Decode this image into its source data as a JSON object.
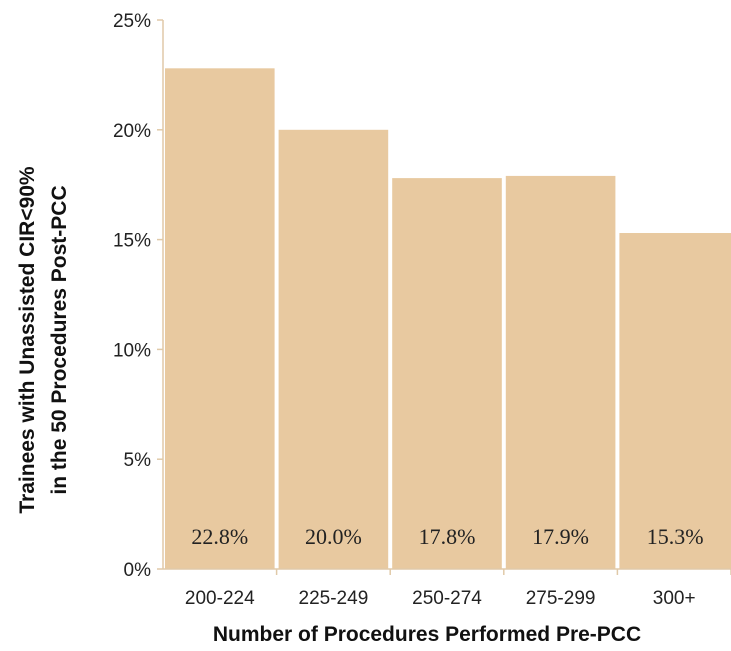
{
  "chart_data": {
    "type": "bar",
    "categories": [
      "200-224",
      "225-249",
      "250-274",
      "275-299",
      "300+"
    ],
    "values": [
      22.8,
      20.0,
      17.8,
      17.9,
      15.3
    ],
    "data_labels": [
      "22.8%",
      "20.0%",
      "17.8%",
      "17.9%",
      "15.3%"
    ],
    "xlabel": "Number of Procedures Performed Pre-PCC",
    "ylabel_lines": [
      "Trainees with Unassisted CIR<90%",
      "in the 50 Procedures Post-PCC"
    ],
    "ylim": [
      0,
      25
    ],
    "yticks": [
      0,
      5,
      10,
      15,
      20,
      25
    ],
    "ytick_labels": [
      "0%",
      "5%",
      "10%",
      "15%",
      "20%",
      "25%"
    ],
    "grid": false,
    "legend": "none",
    "colors": {
      "bar": "#E8C9A0",
      "axis": "#E0C9A8"
    }
  }
}
